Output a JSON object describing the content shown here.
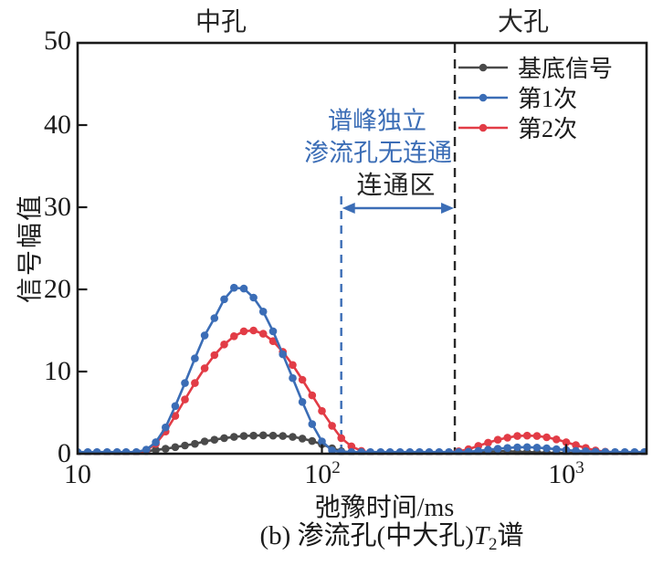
{
  "chart_data": {
    "type": "line",
    "title": "(b) 渗流孔(中大孔)T2谱",
    "xlabel": "弛豫时间/ms",
    "ylabel": "信号幅值",
    "x_axis": {
      "scale": "log",
      "range_ms": [
        10,
        2089
      ],
      "tick_values": [
        10,
        100,
        1000
      ],
      "tick_labels": [
        {
          "base": "10",
          "exp": ""
        },
        {
          "base": "10",
          "exp": "2"
        },
        {
          "base": "10",
          "exp": "3"
        }
      ]
    },
    "y_axis": {
      "range": [
        0,
        50
      ],
      "tick_values": [
        0,
        10,
        20,
        30,
        40,
        50
      ],
      "tick_labels": [
        "0",
        "10",
        "20",
        "30",
        "40",
        "50"
      ]
    },
    "grid": false,
    "legend_position": "top-right-inside",
    "t2_ms": [
      10,
      11,
      12,
      13.2,
      14.5,
      15.8,
      17.4,
      19.1,
      20.9,
      22.9,
      25.1,
      27.5,
      30.2,
      33.1,
      36.3,
      39.8,
      43.7,
      47.9,
      52.5,
      57.5,
      63.1,
      69.2,
      75.9,
      83.2,
      91.2,
      100,
      110,
      120,
      132,
      145,
      158,
      174,
      190,
      209,
      229,
      251,
      275,
      302,
      331,
      363,
      398,
      437,
      479,
      525,
      575,
      631,
      692,
      759,
      832,
      912,
      1000,
      1096,
      1202,
      1318,
      1445,
      1585,
      1738,
      1905,
      2089
    ],
    "series": [
      {
        "name": "基底信号",
        "color": "#4a4a4a",
        "values": [
          0.1,
          0.1,
          0.1,
          0.1,
          0.1,
          0.1,
          0.15,
          0.3,
          0.45,
          0.6,
          0.8,
          1.0,
          1.2,
          1.5,
          1.7,
          1.9,
          2.05,
          2.15,
          2.2,
          2.25,
          2.2,
          2.15,
          2.05,
          1.85,
          1.55,
          1.15,
          0.65,
          0.3,
          0.15,
          0.1,
          0.1,
          0.1,
          0.1,
          0.1,
          0.1,
          0.1,
          0.1,
          0.1,
          0.1,
          0.1,
          0.1,
          0.15,
          0.25,
          0.3,
          0.3,
          0.25,
          0.2,
          0.15,
          0.12,
          0.1,
          0.1,
          0.1,
          0.1,
          0.1,
          0.1,
          0.1,
          0.1,
          0.1,
          0.1
        ]
      },
      {
        "name": "第1次",
        "color": "#3b6db6",
        "values": [
          0.2,
          0.2,
          0.2,
          0.2,
          0.2,
          0.2,
          0.2,
          0.5,
          1.4,
          3.2,
          5.8,
          8.6,
          11.6,
          14.4,
          16.5,
          18.8,
          20.2,
          20.1,
          19.0,
          17.3,
          14.9,
          12.1,
          9.2,
          6.3,
          3.6,
          1.5,
          0.4,
          0.2,
          0.2,
          0.2,
          0.2,
          0.2,
          0.2,
          0.2,
          0.2,
          0.2,
          0.2,
          0.2,
          0.2,
          0.2,
          0.25,
          0.35,
          0.5,
          0.6,
          0.7,
          0.78,
          0.8,
          0.75,
          0.65,
          0.55,
          0.45,
          0.35,
          0.3,
          0.25,
          0.22,
          0.2,
          0.2,
          0.2,
          0.2
        ]
      },
      {
        "name": "第2次",
        "color": "#e23c46",
        "values": [
          0.15,
          0.15,
          0.15,
          0.15,
          0.15,
          0.15,
          0.15,
          0.4,
          1.2,
          2.7,
          4.6,
          6.6,
          8.6,
          10.4,
          12.0,
          13.3,
          14.3,
          14.9,
          15.0,
          14.6,
          13.7,
          12.4,
          10.8,
          9.0,
          7.1,
          5.2,
          3.4,
          1.9,
          0.9,
          0.35,
          0.15,
          0.15,
          0.15,
          0.15,
          0.15,
          0.15,
          0.15,
          0.15,
          0.15,
          0.3,
          0.55,
          0.95,
          1.35,
          1.7,
          1.95,
          2.15,
          2.2,
          2.15,
          2.0,
          1.75,
          1.4,
          1.05,
          0.7,
          0.4,
          0.25,
          0.15,
          0.15,
          0.15,
          0.15
        ]
      }
    ],
    "vertical_dashed_lines_ms": [
      120,
      350
    ],
    "arrow_span_ms": [
      120,
      350
    ]
  },
  "annotations": {
    "region_meso": "中孔",
    "region_macro": "大孔",
    "peak_note_line1": "谱峰独立",
    "peak_note_line2": "渗流孔无连通",
    "connect_zone": "连通区"
  },
  "caption": {
    "prefix": "(b) 渗流孔(中大孔)",
    "t_symbol": "T",
    "t_sub": "2",
    "suffix": "谱"
  },
  "colors": {
    "blue": "#3b6db6",
    "red": "#e23c46",
    "series_black": "#4a4a4a",
    "axis": "#1a1a1a",
    "annotation_blue": "#3b6db6",
    "dashed_black": "#2a2a2a"
  }
}
